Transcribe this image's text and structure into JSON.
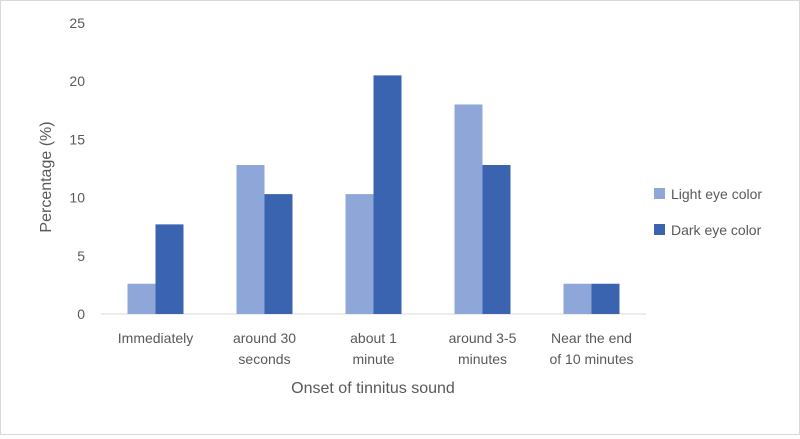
{
  "chart_data": {
    "type": "bar",
    "title": "",
    "xlabel": "Onset of tinnitus sound",
    "ylabel": "Percentage (%)",
    "ylim": [
      0,
      25
    ],
    "yticks": [
      0,
      5,
      10,
      15,
      20,
      25
    ],
    "grid": false,
    "legend_position": "right",
    "categories": [
      [
        "Immediately"
      ],
      [
        "around 30",
        "seconds"
      ],
      [
        "about 1",
        "minute"
      ],
      [
        "around 3-5",
        "minutes"
      ],
      [
        "Near the end",
        "of 10 minutes"
      ]
    ],
    "series": [
      {
        "name": "Light eye color",
        "color": "#8FA6D8",
        "values": [
          2.6,
          12.8,
          10.3,
          18.0,
          2.6
        ]
      },
      {
        "name": "Dark eye color",
        "color": "#3A64B0",
        "values": [
          7.7,
          10.3,
          20.5,
          12.8,
          2.6
        ]
      }
    ]
  }
}
